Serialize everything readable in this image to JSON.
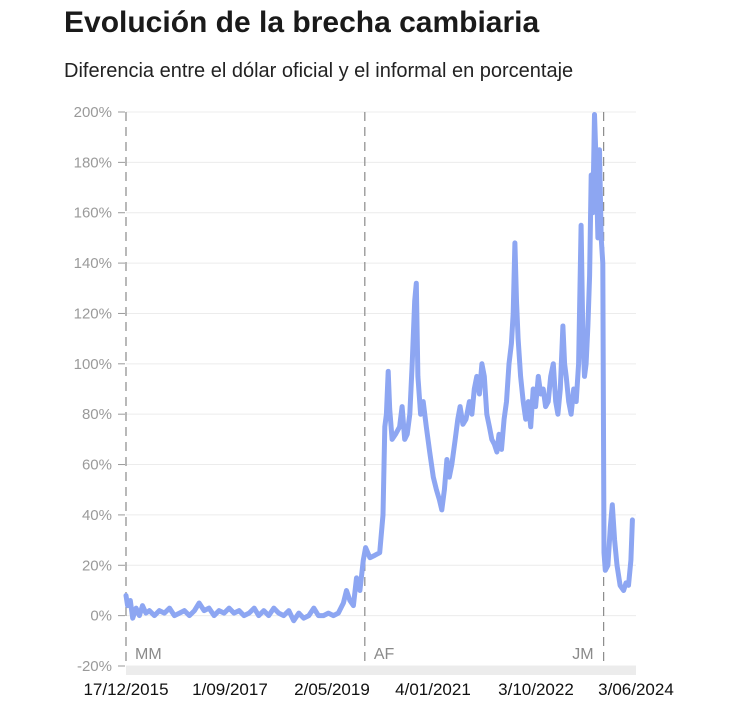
{
  "header": {
    "title": "Evolución de la brecha cambiaria",
    "subtitle": "Diferencia entre el dólar oficial y el informal en porcentaje"
  },
  "chart_data": {
    "type": "line",
    "title": "Evolución de la brecha cambiaria",
    "subtitle": "Diferencia entre el dólar oficial y el informal en porcentaje",
    "xlabel": "",
    "ylabel": "",
    "ylim": [
      -20,
      200
    ],
    "xlim": [
      "2015-12-17",
      "2024-06-03"
    ],
    "grid": true,
    "y_ticks": [
      -20,
      0,
      20,
      40,
      60,
      80,
      100,
      120,
      140,
      160,
      180,
      200
    ],
    "y_tick_labels": [
      "-20%",
      "0%",
      "20%",
      "40%",
      "60%",
      "80%",
      "100%",
      "120%",
      "140%",
      "160%",
      "180%",
      "200%"
    ],
    "x_ticks": [
      "2015-12-17",
      "2017-09-01",
      "2019-05-02",
      "2021-01-04",
      "2022-10-03",
      "2024-06-03"
    ],
    "x_tick_labels": [
      "17/12/2015",
      "1/09/2017",
      "2/05/2019",
      "4/01/2021",
      "3/10/2022",
      "3/06/2024"
    ],
    "line_color": "#8da6f2",
    "annotations": [
      {
        "label": "MM",
        "x": "2015-12-10"
      },
      {
        "label": "AF",
        "x": "2019-12-10"
      },
      {
        "label": "JM",
        "x": "2023-12-10"
      }
    ],
    "series": [
      {
        "points": [
          [
            "2015-12-10",
            8
          ],
          [
            "2015-12-20",
            4
          ],
          [
            "2016-01-05",
            6
          ],
          [
            "2016-01-20",
            -1
          ],
          [
            "2016-02-10",
            3
          ],
          [
            "2016-03-01",
            0
          ],
          [
            "2016-03-20",
            4
          ],
          [
            "2016-04-10",
            1
          ],
          [
            "2016-05-01",
            2
          ],
          [
            "2016-06-01",
            0
          ],
          [
            "2016-07-01",
            2
          ],
          [
            "2016-08-01",
            1
          ],
          [
            "2016-09-01",
            3
          ],
          [
            "2016-10-01",
            0
          ],
          [
            "2016-11-01",
            1
          ],
          [
            "2016-12-01",
            2
          ],
          [
            "2017-01-01",
            0
          ],
          [
            "2017-02-01",
            2
          ],
          [
            "2017-03-01",
            5
          ],
          [
            "2017-04-01",
            2
          ],
          [
            "2017-05-01",
            3
          ],
          [
            "2017-06-01",
            0
          ],
          [
            "2017-07-01",
            2
          ],
          [
            "2017-08-01",
            1
          ],
          [
            "2017-09-01",
            3
          ],
          [
            "2017-10-01",
            1
          ],
          [
            "2017-11-01",
            2
          ],
          [
            "2017-12-01",
            0
          ],
          [
            "2018-01-01",
            1
          ],
          [
            "2018-02-01",
            3
          ],
          [
            "2018-03-01",
            0
          ],
          [
            "2018-04-01",
            2
          ],
          [
            "2018-05-01",
            0
          ],
          [
            "2018-06-01",
            3
          ],
          [
            "2018-07-01",
            1
          ],
          [
            "2018-08-01",
            0
          ],
          [
            "2018-09-01",
            2
          ],
          [
            "2018-10-01",
            -2
          ],
          [
            "2018-11-01",
            1
          ],
          [
            "2018-12-01",
            -1
          ],
          [
            "2019-01-01",
            0
          ],
          [
            "2019-02-01",
            3
          ],
          [
            "2019-03-01",
            0
          ],
          [
            "2019-04-01",
            0
          ],
          [
            "2019-05-01",
            1
          ],
          [
            "2019-06-01",
            0
          ],
          [
            "2019-07-01",
            1
          ],
          [
            "2019-08-01",
            5
          ],
          [
            "2019-08-20",
            10
          ],
          [
            "2019-09-10",
            6
          ],
          [
            "2019-10-01",
            4
          ],
          [
            "2019-10-20",
            15
          ],
          [
            "2019-11-10",
            10
          ],
          [
            "2019-12-01",
            22
          ],
          [
            "2019-12-15",
            27
          ],
          [
            "2020-01-10",
            23
          ],
          [
            "2020-02-10",
            24
          ],
          [
            "2020-03-10",
            25
          ],
          [
            "2020-03-30",
            40
          ],
          [
            "2020-04-10",
            75
          ],
          [
            "2020-04-20",
            80
          ],
          [
            "2020-05-01",
            97
          ],
          [
            "2020-05-10",
            82
          ],
          [
            "2020-05-25",
            70
          ],
          [
            "2020-06-15",
            72
          ],
          [
            "2020-07-10",
            75
          ],
          [
            "2020-07-25",
            83
          ],
          [
            "2020-08-10",
            70
          ],
          [
            "2020-08-25",
            72
          ],
          [
            "2020-09-10",
            80
          ],
          [
            "2020-09-25",
            100
          ],
          [
            "2020-10-10",
            125
          ],
          [
            "2020-10-20",
            132
          ],
          [
            "2020-10-30",
            95
          ],
          [
            "2020-11-15",
            80
          ],
          [
            "2020-12-01",
            85
          ],
          [
            "2020-12-20",
            75
          ],
          [
            "2021-01-10",
            65
          ],
          [
            "2021-02-01",
            55
          ],
          [
            "2021-02-20",
            50
          ],
          [
            "2021-03-10",
            46
          ],
          [
            "2021-03-25",
            42
          ],
          [
            "2021-04-10",
            50
          ],
          [
            "2021-04-25",
            62
          ],
          [
            "2021-05-10",
            55
          ],
          [
            "2021-05-25",
            60
          ],
          [
            "2021-06-15",
            70
          ],
          [
            "2021-07-01",
            78
          ],
          [
            "2021-07-15",
            83
          ],
          [
            "2021-08-01",
            76
          ],
          [
            "2021-08-20",
            78
          ],
          [
            "2021-09-10",
            85
          ],
          [
            "2021-09-25",
            80
          ],
          [
            "2021-10-10",
            90
          ],
          [
            "2021-10-25",
            95
          ],
          [
            "2021-11-10",
            88
          ],
          [
            "2021-11-25",
            100
          ],
          [
            "2021-12-10",
            95
          ],
          [
            "2021-12-25",
            80
          ],
          [
            "2022-01-10",
            75
          ],
          [
            "2022-01-25",
            70
          ],
          [
            "2022-02-10",
            68
          ],
          [
            "2022-02-25",
            65
          ],
          [
            "2022-03-10",
            72
          ],
          [
            "2022-03-25",
            66
          ],
          [
            "2022-04-10",
            78
          ],
          [
            "2022-04-25",
            85
          ],
          [
            "2022-05-10",
            100
          ],
          [
            "2022-05-25",
            108
          ],
          [
            "2022-06-05",
            120
          ],
          [
            "2022-06-15",
            148
          ],
          [
            "2022-06-25",
            125
          ],
          [
            "2022-07-05",
            110
          ],
          [
            "2022-07-20",
            95
          ],
          [
            "2022-08-05",
            85
          ],
          [
            "2022-08-20",
            78
          ],
          [
            "2022-09-05",
            85
          ],
          [
            "2022-09-20",
            75
          ],
          [
            "2022-10-05",
            90
          ],
          [
            "2022-10-20",
            83
          ],
          [
            "2022-11-05",
            95
          ],
          [
            "2022-11-20",
            88
          ],
          [
            "2022-12-05",
            90
          ],
          [
            "2022-12-20",
            83
          ],
          [
            "2023-01-05",
            85
          ],
          [
            "2023-01-20",
            95
          ],
          [
            "2023-02-05",
            100
          ],
          [
            "2023-02-20",
            85
          ],
          [
            "2023-03-05",
            80
          ],
          [
            "2023-03-20",
            90
          ],
          [
            "2023-04-05",
            115
          ],
          [
            "2023-04-15",
            100
          ],
          [
            "2023-04-25",
            95
          ],
          [
            "2023-05-10",
            85
          ],
          [
            "2023-05-25",
            80
          ],
          [
            "2023-06-10",
            90
          ],
          [
            "2023-06-25",
            85
          ],
          [
            "2023-07-10",
            100
          ],
          [
            "2023-07-25",
            155
          ],
          [
            "2023-08-05",
            110
          ],
          [
            "2023-08-15",
            95
          ],
          [
            "2023-08-25",
            100
          ],
          [
            "2023-09-05",
            115
          ],
          [
            "2023-09-15",
            135
          ],
          [
            "2023-09-25",
            175
          ],
          [
            "2023-10-05",
            160
          ],
          [
            "2023-10-15",
            199
          ],
          [
            "2023-10-25",
            180
          ],
          [
            "2023-11-05",
            150
          ],
          [
            "2023-11-15",
            185
          ],
          [
            "2023-11-25",
            150
          ],
          [
            "2023-12-05",
            140
          ],
          [
            "2023-12-12",
            25
          ],
          [
            "2023-12-20",
            18
          ],
          [
            "2024-01-05",
            20
          ],
          [
            "2024-01-20",
            35
          ],
          [
            "2024-02-01",
            44
          ],
          [
            "2024-02-15",
            30
          ],
          [
            "2024-03-01",
            20
          ],
          [
            "2024-03-20",
            12
          ],
          [
            "2024-04-10",
            10
          ],
          [
            "2024-04-25",
            13
          ],
          [
            "2024-05-10",
            12
          ],
          [
            "2024-05-25",
            22
          ],
          [
            "2024-06-03",
            38
          ]
        ]
      }
    ]
  }
}
